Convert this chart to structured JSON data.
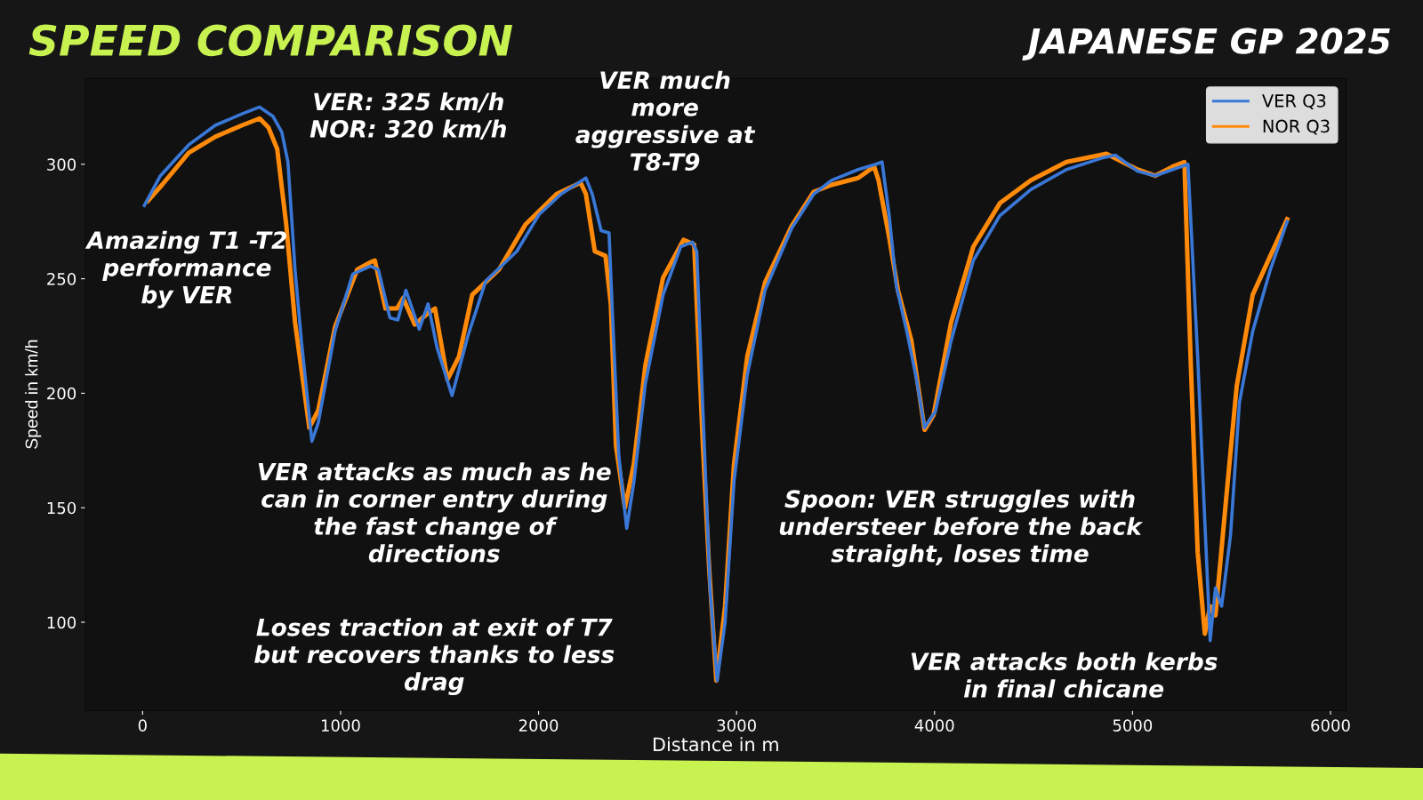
{
  "chart_data": {
    "type": "line",
    "title": "SPEED COMPARISON",
    "subtitle": "JAPANESE GP 2025",
    "xlabel": "Distance in m",
    "ylabel": "Speed in km/h",
    "xlim": [
      -289,
      6079
    ],
    "ylim": [
      61.5,
      337.5
    ],
    "xticks": [
      0,
      1000,
      2000,
      3000,
      4000,
      5000,
      6000
    ],
    "yticks": [
      100,
      150,
      200,
      250,
      300
    ],
    "grid": false,
    "legend": "top right",
    "series": [
      {
        "name": "VER Q3",
        "color": "#3a78d8",
        "x": [
          9,
          90,
          233,
          367,
          502,
          591,
          658,
          703,
          734,
          770,
          802,
          855,
          887,
          972,
          1061,
          1151,
          1191,
          1249,
          1289,
          1330,
          1397,
          1442,
          1487,
          1563,
          1643,
          1733,
          1890,
          2002,
          2114,
          2239,
          2271,
          2316,
          2356,
          2373,
          2405,
          2445,
          2481,
          2539,
          2629,
          2718,
          2777,
          2799,
          2830,
          2866,
          2902,
          2942,
          2987,
          3054,
          3144,
          3278,
          3390,
          3480,
          3614,
          3704,
          3735,
          3771,
          3807,
          3860,
          3905,
          3950,
          4004,
          4084,
          4196,
          4330,
          4487,
          4666,
          4845,
          4913,
          5025,
          5114,
          5203,
          5280,
          5329,
          5360,
          5392,
          5419,
          5450,
          5495,
          5540,
          5607,
          5696,
          5781
        ],
        "values": [
          282,
          295,
          308.5,
          317,
          322,
          325,
          321,
          314,
          301,
          254,
          223,
          179,
          187,
          227,
          252,
          255.5,
          254,
          233,
          232,
          245,
          228,
          239,
          220,
          199,
          225,
          249,
          262,
          278,
          287,
          294,
          287,
          271,
          270,
          235,
          173,
          141,
          161,
          204,
          243,
          264,
          266,
          262,
          192.5,
          115,
          74.5,
          100,
          161.5,
          208,
          245,
          272,
          287,
          293,
          297.7,
          300,
          301,
          277.6,
          247,
          227,
          208,
          185,
          192,
          223,
          258,
          277.6,
          289,
          297.7,
          302.7,
          304,
          297,
          295,
          297.7,
          300,
          216,
          154,
          92,
          115,
          107,
          138,
          196,
          227,
          254,
          275
        ]
      },
      {
        "name": "NOR Q3",
        "color": "#ff8a0a",
        "x": [
          27,
          98,
          233,
          367,
          502,
          591,
          636,
          680,
          725,
          770,
          842,
          887,
          972,
          1084,
          1146,
          1173,
          1227,
          1285,
          1316,
          1374,
          1442,
          1477,
          1540,
          1598,
          1665,
          1800,
          1934,
          2091,
          2212,
          2239,
          2284,
          2338,
          2365,
          2391,
          2436,
          2481,
          2539,
          2629,
          2732,
          2786,
          2830,
          2862,
          2898,
          2942,
          2987,
          3054,
          3144,
          3278,
          3390,
          3480,
          3614,
          3695,
          3717,
          3771,
          3816,
          3883,
          3950,
          3995,
          4084,
          4196,
          4330,
          4487,
          4666,
          4868,
          5025,
          5114,
          5203,
          5262,
          5293,
          5329,
          5365,
          5392,
          5419,
          5473,
          5526,
          5607,
          5696,
          5781
        ],
        "values": [
          284,
          291,
          305,
          312,
          317,
          320,
          316,
          306.6,
          274,
          231,
          185,
          192.5,
          229,
          254,
          257,
          258,
          237,
          237,
          241.6,
          230,
          235,
          237,
          206,
          216,
          243,
          254,
          273.7,
          287,
          292,
          287,
          262,
          260,
          239,
          177,
          150,
          169,
          212,
          250.5,
          267,
          265,
          177,
          123,
          74.5,
          107,
          169,
          216,
          248.5,
          273,
          288,
          291,
          294,
          299,
          293,
          268,
          244.7,
          223,
          184,
          190.5,
          231,
          264,
          283,
          293,
          301,
          304.6,
          297.7,
          295,
          299,
          301,
          216,
          130.6,
          95,
          107,
          103,
          154,
          203,
          243,
          260,
          276
        ]
      }
    ],
    "annotations": [
      "VER: 325 km/h\nNOR: 320 km/h",
      "Amazing T1 -T2\nperformance\nby VER",
      "VER much\nmore\naggressive at\nT8-T9",
      "VER attacks as much as he\ncan in corner entry during\nthe fast change of\ndirections",
      "Loses traction at exit of T7\nbut recovers thanks to less\ndrag",
      "Spoon: VER struggles with\nundersteer before the back\nstraight, loses time",
      "VER attacks both kerbs\nin final chicane"
    ]
  }
}
